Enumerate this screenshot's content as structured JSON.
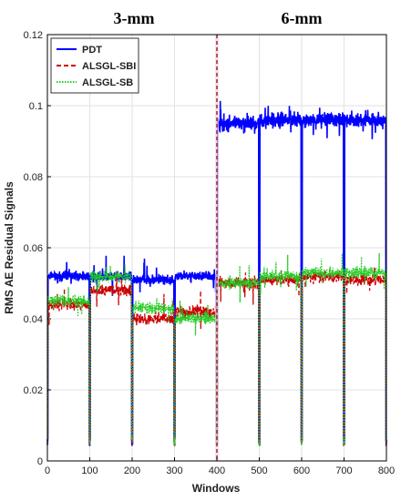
{
  "chart_data": {
    "type": "line",
    "title": "",
    "xlabel": "Windows",
    "ylabel": "RMS AE Residual Signals",
    "xlim": [
      0,
      800
    ],
    "ylim": [
      0,
      0.12
    ],
    "x_ticks": [
      "0",
      "100",
      "200",
      "300",
      "400",
      "500",
      "600",
      "700",
      "800"
    ],
    "y_ticks": [
      "0",
      "0.02",
      "0.04",
      "0.06",
      "0.08",
      "0.1",
      "0.12"
    ],
    "grid": true,
    "legend_position": "top-left",
    "region_labels": [
      {
        "text": "3-mm",
        "x_center": 200
      },
      {
        "text": "6-mm",
        "x_center": 600
      }
    ],
    "divider_x": 400,
    "dip_every": 100,
    "series": [
      {
        "name": "PDT",
        "color": "#0000ff",
        "style": "solid",
        "segments": [
          {
            "x": [
              0,
              100
            ],
            "mean": 0.052
          },
          {
            "x": [
              100,
              200
            ],
            "mean": 0.052
          },
          {
            "x": [
              200,
              300
            ],
            "mean": 0.051
          },
          {
            "x": [
              300,
              400
            ],
            "mean": 0.052
          },
          {
            "x": [
              400,
              500
            ],
            "mean": 0.095
          },
          {
            "x": [
              500,
              600
            ],
            "mean": 0.096
          },
          {
            "x": [
              600,
              700
            ],
            "mean": 0.096
          },
          {
            "x": [
              700,
              800
            ],
            "mean": 0.096
          }
        ],
        "dip_value": 0.004
      },
      {
        "name": "ALSGL-SBI",
        "color": "#cc0000",
        "style": "dashed",
        "segments": [
          {
            "x": [
              0,
              100
            ],
            "mean": 0.044
          },
          {
            "x": [
              100,
              200
            ],
            "mean": 0.048
          },
          {
            "x": [
              200,
              300
            ],
            "mean": 0.04
          },
          {
            "x": [
              300,
              400
            ],
            "mean": 0.042
          },
          {
            "x": [
              400,
              500
            ],
            "mean": 0.05
          },
          {
            "x": [
              500,
              600
            ],
            "mean": 0.051
          },
          {
            "x": [
              600,
              700
            ],
            "mean": 0.052
          },
          {
            "x": [
              700,
              800
            ],
            "mean": 0.051
          }
        ],
        "dip_value": 0.004
      },
      {
        "name": "ALSGL-SB",
        "color": "#22cc22",
        "style": "dotted",
        "segments": [
          {
            "x": [
              0,
              100
            ],
            "mean": 0.045
          },
          {
            "x": [
              100,
              200
            ],
            "mean": 0.052
          },
          {
            "x": [
              200,
              300
            ],
            "mean": 0.043
          },
          {
            "x": [
              300,
              400
            ],
            "mean": 0.04
          },
          {
            "x": [
              400,
              500
            ],
            "mean": 0.05
          },
          {
            "x": [
              500,
              600
            ],
            "mean": 0.052
          },
          {
            "x": [
              600,
              700
            ],
            "mean": 0.053
          },
          {
            "x": [
              700,
              800
            ],
            "mean": 0.053
          }
        ],
        "dip_value": 0.004
      }
    ]
  }
}
